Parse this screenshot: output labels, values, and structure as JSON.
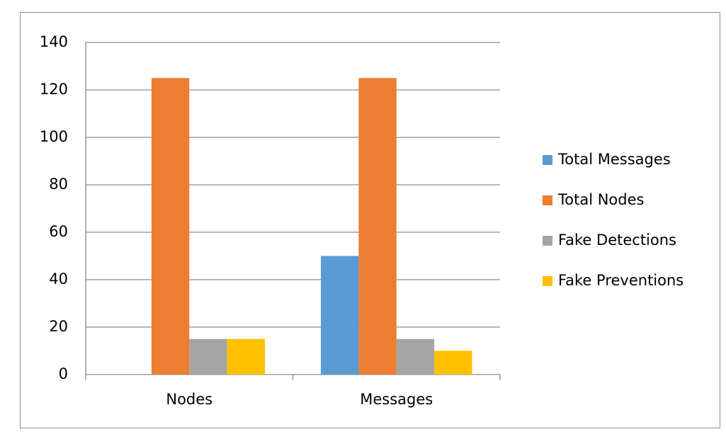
{
  "chart_data": {
    "type": "bar",
    "categories": [
      "Nodes",
      "Messages"
    ],
    "series": [
      {
        "name": "Total Messages",
        "color": "#5b9bd5",
        "values": [
          0,
          50
        ]
      },
      {
        "name": "Total Nodes",
        "color": "#ed7d31",
        "values": [
          125,
          125
        ]
      },
      {
        "name": "Fake Detections",
        "color": "#a5a5a5",
        "values": [
          15,
          15
        ]
      },
      {
        "name": "Fake Preventions",
        "color": "#ffc000",
        "values": [
          15,
          10
        ]
      }
    ],
    "ylim": [
      0,
      140
    ],
    "yticks": [
      0,
      20,
      40,
      60,
      80,
      100,
      120,
      140
    ],
    "grid": true,
    "legend": "right"
  }
}
